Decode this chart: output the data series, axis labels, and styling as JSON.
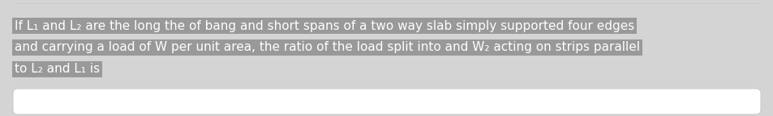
{
  "outer_bg": "#d4d4d4",
  "highlight_color": "#999999",
  "text_color": "#ffffff",
  "dark_text_color": "#555555",
  "border_color": "#cccccc",
  "white_box_color": "#ffffff",
  "text_lines": [
    "If L₁ and L₂ are the long the of bang and short spans of a two way slab simply supported four edges",
    "and carrying a load of W per unit area, the ratio of the load split into and W₂ acting on strips parallel",
    "to L₂ and L₁ is"
  ],
  "font_size": 11.0,
  "figwidth": 9.54,
  "figheight": 1.44,
  "dpi": 100
}
